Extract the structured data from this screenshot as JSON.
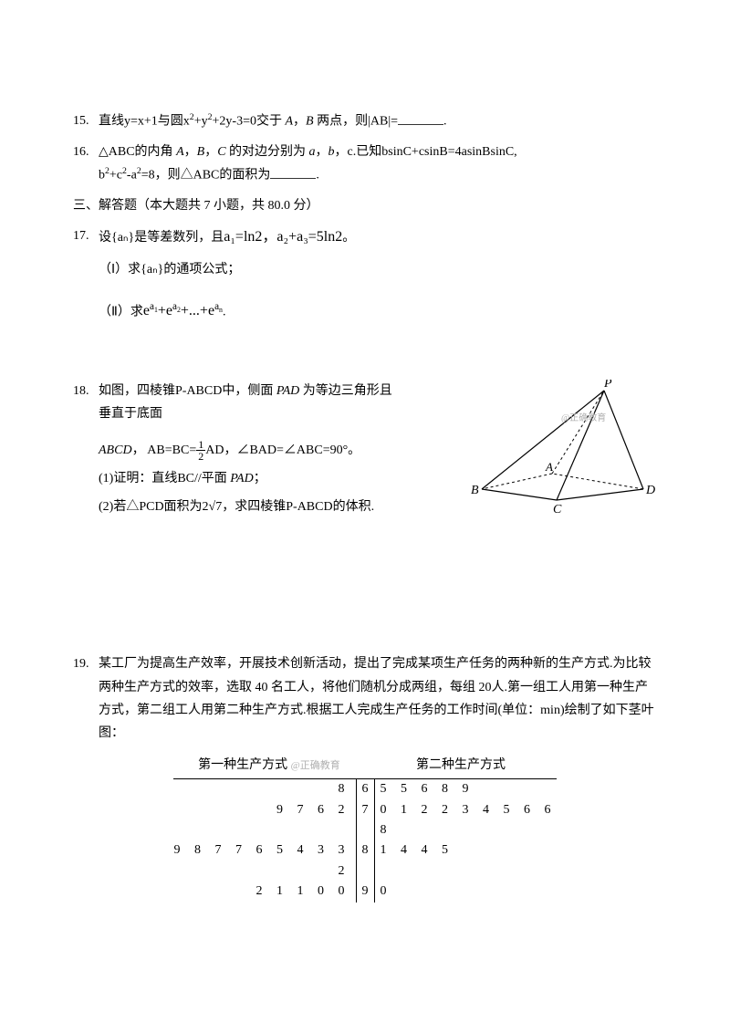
{
  "q15": {
    "num": "15.",
    "text_a": "直线y=x+1与圆x",
    "sup1": "2",
    "text_b": "+y",
    "sup2": "2",
    "text_c": "+2y-3=0交于 ",
    "A": "A",
    "comma1": "，",
    "B": "B",
    "text_d": " 两点，则|AB|=",
    "period": "."
  },
  "q16": {
    "num": "16.",
    "line1_a": "△ABC的内角 ",
    "A": "A",
    "c1": "，",
    "B": "B",
    "c2": "，",
    "C": "C",
    "line1_b": " 的对边分别为 ",
    "a": "a",
    "c3": "，",
    "b": "b",
    "c4": "，c.已知bsinC+csinB=4asinBsinC,",
    "line2_a": "b",
    "sup1": "2",
    "line2_b": "+c",
    "sup2": "2",
    "line2_c": "-a",
    "sup3": "2",
    "line2_d": "=8，则△ABC的面积为",
    "period": "."
  },
  "section3": "三、解答题（本大题共 7 小题，共 80.0 分）",
  "q17": {
    "num": "17.",
    "text_a": "设",
    "an_set": "{aₙ}",
    "text_b": "是等差数列，且",
    "eq1": "a₁=ln2，a₂+a₃=5ln2",
    "period": "。",
    "part1_label": "（Ⅰ）求",
    "part1_an": "{aₙ}",
    "part1_text": "的通项公式；",
    "part2_label": "（Ⅱ）求",
    "part2_expr": "e^a₁+e^a₂+...+e^aₙ",
    "part2_period": "."
  },
  "q18": {
    "num": "18.",
    "line1": "如图，四棱锥P-ABCD中，侧面 ",
    "PAD": "PAD",
    "line1b": " 为等边三角形且",
    "line2": "垂直于底面",
    "line3_a": "ABCD",
    "line3_b": "，",
    "eq": "AB=BC=",
    "frac_num": "1",
    "frac_den": "2",
    "eq2": "AD",
    "line3_c": "，∠BAD=∠ABC=90°。",
    "part1": "(1)证明：直线BC//平面 ",
    "part1_pad": "PAD",
    "part1_end": "；",
    "part2": "(2)若△PCD面积为2√7，求四棱锥P-ABCD的体积.",
    "watermark": "@正确教育",
    "labels": {
      "P": "P",
      "A": "A",
      "B": "B",
      "C": "C",
      "D": "D"
    }
  },
  "q19": {
    "num": "19.",
    "text": "某工厂为提高生产效率，开展技术创新活动，提出了完成某项生产任务的两种新的生产方式.为比较两种生产方式的效率，选取 40 名工人，将他们随机分成两组，每组 20人.第一组工人用第一种生产方式，第二组工人用第二种生产方式.根据工人完成生产任务的工作时间(单位：min)绘制了如下茎叶图：",
    "header_left": "第一种生产方式",
    "header_right": "第二种生产方式",
    "watermark": "@正确教育",
    "rows": [
      {
        "left": "8",
        "stem": "6",
        "right": "5 5 6 8 9"
      },
      {
        "left": "9 7 6 2",
        "stem": "7",
        "right": "0 1 2 2 3 4 5 6 6 8"
      },
      {
        "left": "9 8 7 7 6 5 4 3 3 2",
        "stem": "8",
        "right": "1 4 4 5"
      },
      {
        "left": "2 1 1 0 0",
        "stem": "9",
        "right": "0"
      }
    ]
  },
  "colors": {
    "text": "#000000",
    "bg": "#ffffff",
    "watermark": "#b0b0b0",
    "rule": "#000000"
  }
}
